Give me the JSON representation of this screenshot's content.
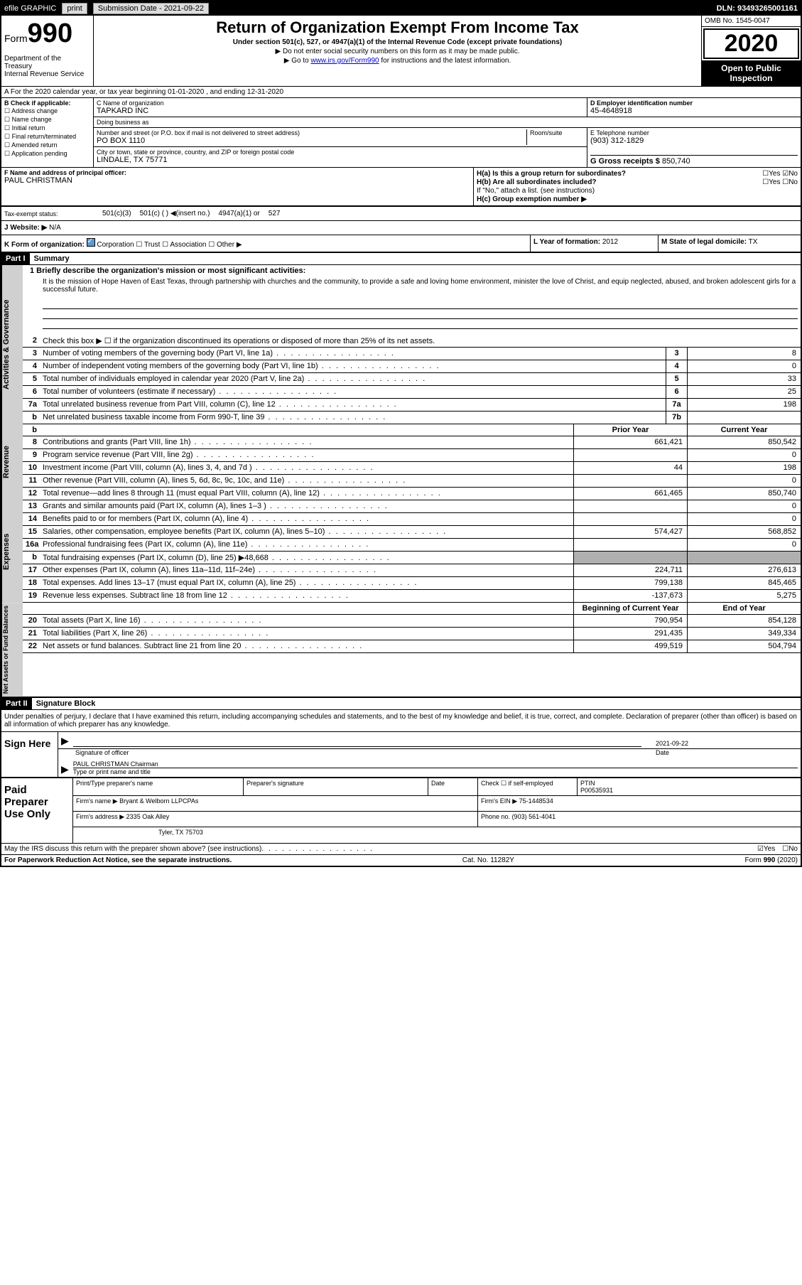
{
  "topbar": {
    "efile": "efile GRAPHIC",
    "print": "print",
    "submission": "Submission Date - 2021-09-22",
    "dln": "DLN: 93493265001161"
  },
  "header": {
    "form_prefix": "Form",
    "form_num": "990",
    "title": "Return of Organization Exempt From Income Tax",
    "subtitle": "Under section 501(c), 527, or 4947(a)(1) of the Internal Revenue Code (except private foundations)",
    "note1": "▶ Do not enter social security numbers on this form as it may be made public.",
    "note2_prefix": "▶ Go to ",
    "note2_link": "www.irs.gov/Form990",
    "note2_suffix": " for instructions and the latest information.",
    "dept": "Department of the Treasury",
    "irs": "Internal Revenue Service",
    "omb": "OMB No. 1545-0047",
    "year": "2020",
    "open": "Open to Public Inspection"
  },
  "row_a": "A For the 2020 calendar year, or tax year beginning 01-01-2020    , and ending 12-31-2020",
  "section_b": {
    "label": "B Check if applicable:",
    "addr": "Address change",
    "name": "Name change",
    "initial": "Initial return",
    "final": "Final return/terminated",
    "amended": "Amended return",
    "app": "Application pending"
  },
  "section_c": {
    "name_label": "C Name of organization",
    "name": "TAPKARD INC",
    "dba_label": "Doing business as",
    "street_label": "Number and street (or P.O. box if mail is not delivered to street address)",
    "street": "PO BOX 1110",
    "room_label": "Room/suite",
    "city_label": "City or town, state or province, country, and ZIP or foreign postal code",
    "city": "LINDALE, TX  75771"
  },
  "section_d": {
    "label": "D Employer identification number",
    "ein": "45-4648918"
  },
  "section_e": {
    "label": "E Telephone number",
    "phone": "(903) 312-1829"
  },
  "section_g": {
    "label": "G Gross receipts $",
    "amount": "850,740"
  },
  "section_f": {
    "label": "F  Name and address of principal officer:",
    "name": "PAUL CHRISTMAN"
  },
  "section_h": {
    "ha": "H(a)  Is this a group return for subordinates?",
    "ha_no": "No",
    "ha_yes": "Yes",
    "hb": "H(b)  Are all subordinates included?",
    "hb_note": "If \"No,\" attach a list. (see instructions)",
    "hc": "H(c)  Group exemption number ▶"
  },
  "section_i": {
    "label": "Tax-exempt status:",
    "opt1": "501(c)(3)",
    "opt2": "501(c) (  ) ◀(insert no.)",
    "opt3": "4947(a)(1) or",
    "opt4": "527"
  },
  "section_j": {
    "label": "J   Website: ▶",
    "value": "N/A"
  },
  "section_k": {
    "label": "K Form of organization:",
    "corp": "Corporation",
    "trust": "Trust",
    "assoc": "Association",
    "other": "Other ▶"
  },
  "section_l": {
    "label": "L Year of formation:",
    "value": "2012"
  },
  "section_m": {
    "label": "M State of legal domicile:",
    "value": "TX"
  },
  "part1": {
    "header": "Part I",
    "title": "Summary",
    "line1_label": "1  Briefly describe the organization's mission or most significant activities:",
    "mission": "It is the mission of Hope Haven of East Texas, through partnership with churches and the community, to provide a safe and loving home environment, minister the love of Christ, and equip neglected, abused, and broken adolescent girls for a successful future.",
    "line2": "Check this box ▶ ☐  if the organization discontinued its operations or disposed of more than 25% of its net assets.",
    "lines": [
      {
        "num": "3",
        "text": "Number of voting members of the governing body (Part VI, line 1a)",
        "box": "3",
        "val": "8"
      },
      {
        "num": "4",
        "text": "Number of independent voting members of the governing body (Part VI, line 1b)",
        "box": "4",
        "val": "0"
      },
      {
        "num": "5",
        "text": "Total number of individuals employed in calendar year 2020 (Part V, line 2a)",
        "box": "5",
        "val": "33"
      },
      {
        "num": "6",
        "text": "Total number of volunteers (estimate if necessary)",
        "box": "6",
        "val": "25"
      },
      {
        "num": "7a",
        "text": "Total unrelated business revenue from Part VIII, column (C), line 12",
        "box": "7a",
        "val": "198"
      },
      {
        "num": "b",
        "text": "Net unrelated business taxable income from Form 990-T, line 39",
        "box": "7b",
        "val": ""
      }
    ],
    "col_prior": "Prior Year",
    "col_current": "Current Year",
    "revenue": [
      {
        "num": "8",
        "text": "Contributions and grants (Part VIII, line 1h)",
        "prior": "661,421",
        "curr": "850,542"
      },
      {
        "num": "9",
        "text": "Program service revenue (Part VIII, line 2g)",
        "prior": "",
        "curr": "0"
      },
      {
        "num": "10",
        "text": "Investment income (Part VIII, column (A), lines 3, 4, and 7d )",
        "prior": "44",
        "curr": "198"
      },
      {
        "num": "11",
        "text": "Other revenue (Part VIII, column (A), lines 5, 6d, 8c, 9c, 10c, and 11e)",
        "prior": "",
        "curr": "0"
      },
      {
        "num": "12",
        "text": "Total revenue—add lines 8 through 11 (must equal Part VIII, column (A), line 12)",
        "prior": "661,465",
        "curr": "850,740"
      }
    ],
    "expenses": [
      {
        "num": "13",
        "text": "Grants and similar amounts paid (Part IX, column (A), lines 1–3 )",
        "prior": "",
        "curr": "0"
      },
      {
        "num": "14",
        "text": "Benefits paid to or for members (Part IX, column (A), line 4)",
        "prior": "",
        "curr": "0"
      },
      {
        "num": "15",
        "text": "Salaries, other compensation, employee benefits (Part IX, column (A), lines 5–10)",
        "prior": "574,427",
        "curr": "568,852"
      },
      {
        "num": "16a",
        "text": "Professional fundraising fees (Part IX, column (A), line 11e)",
        "prior": "",
        "curr": "0"
      },
      {
        "num": "b",
        "text": "Total fundraising expenses (Part IX, column (D), line 25) ▶48,668",
        "prior": "shaded",
        "curr": "shaded"
      },
      {
        "num": "17",
        "text": "Other expenses (Part IX, column (A), lines 11a–11d, 11f–24e)",
        "prior": "224,711",
        "curr": "276,613"
      },
      {
        "num": "18",
        "text": "Total expenses. Add lines 13–17 (must equal Part IX, column (A), line 25)",
        "prior": "799,138",
        "curr": "845,465"
      },
      {
        "num": "19",
        "text": "Revenue less expenses. Subtract line 18 from line 12",
        "prior": "-137,673",
        "curr": "5,275"
      }
    ],
    "col_begin": "Beginning of Current Year",
    "col_end": "End of Year",
    "netassets": [
      {
        "num": "20",
        "text": "Total assets (Part X, line 16)",
        "prior": "790,954",
        "curr": "854,128"
      },
      {
        "num": "21",
        "text": "Total liabilities (Part X, line 26)",
        "prior": "291,435",
        "curr": "349,334"
      },
      {
        "num": "22",
        "text": "Net assets or fund balances. Subtract line 21 from line 20",
        "prior": "499,519",
        "curr": "504,794"
      }
    ],
    "side_gov": "Activities & Governance",
    "side_rev": "Revenue",
    "side_exp": "Expenses",
    "side_net": "Net Assets or Fund Balances"
  },
  "part2": {
    "header": "Part II",
    "title": "Signature Block",
    "decl": "Under penalties of perjury, I declare that I have examined this return, including accompanying schedules and statements, and to the best of my knowledge and belief, it is true, correct, and complete. Declaration of preparer (other than officer) is based on all information of which preparer has any knowledge.",
    "sign_here": "Sign Here",
    "sig_officer": "Signature of officer",
    "sig_date": "Date",
    "sig_date_val": "2021-09-22",
    "sig_name": "PAUL CHRISTMAN  Chairman",
    "sig_name_label": "Type or print name and title",
    "paid": "Paid Preparer Use Only",
    "prep_name_label": "Print/Type preparer's name",
    "prep_sig_label": "Preparer's signature",
    "prep_date_label": "Date",
    "prep_check": "Check ☐  if self-employed",
    "prep_ptin_label": "PTIN",
    "prep_ptin": "P00535931",
    "firm_name_label": "Firm's name    ▶",
    "firm_name": "Bryant & Welborn LLPCPAs",
    "firm_ein_label": "Firm's EIN ▶",
    "firm_ein": "75-1448534",
    "firm_addr_label": "Firm's address ▶",
    "firm_addr1": "2335 Oak Alley",
    "firm_addr2": "Tyler, TX  75703",
    "phone_label": "Phone no.",
    "phone": "(903) 561-4041",
    "discuss": "May the IRS discuss this return with the preparer shown above? (see instructions)",
    "yes": "Yes",
    "no": "No"
  },
  "footer": {
    "left": "For Paperwork Reduction Act Notice, see the separate instructions.",
    "mid": "Cat. No. 11282Y",
    "right": "Form 990 (2020)"
  }
}
